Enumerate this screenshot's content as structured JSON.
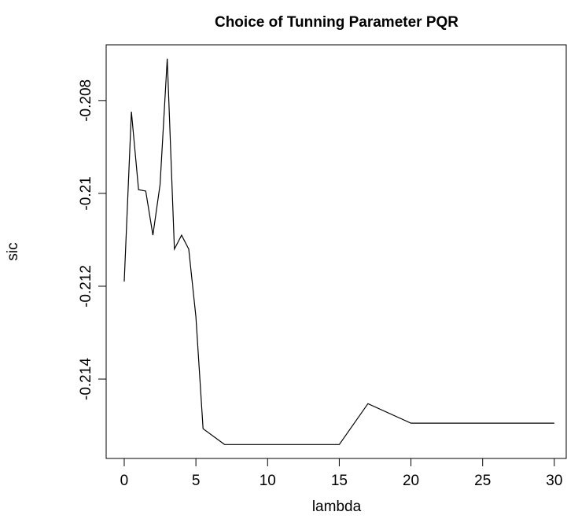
{
  "chart_data": {
    "type": "line",
    "title": "Choice of Tunning Parameter PQR",
    "x_label": "lambda",
    "y_label": "sic",
    "x": [
      0,
      0.5,
      1,
      1.5,
      2,
      2.5,
      3,
      3.5,
      4,
      4.5,
      5,
      5.5,
      7,
      15,
      17,
      20,
      30
    ],
    "series": [
      {
        "color": "#000000",
        "values": [
          -0.2119,
          -0.20824,
          -0.20992,
          -0.20995,
          -0.2109,
          -0.20981,
          -0.2071,
          -0.2112,
          -0.2109,
          -0.2112,
          -0.21266,
          -0.21507,
          -0.21541,
          -0.21541,
          -0.21453,
          -0.21495,
          -0.21495
        ]
      }
    ],
    "xlim": [
      -1.26,
      30.83
    ],
    "ylim": [
      -0.21571,
      -0.2068
    ],
    "xticks": [
      0,
      5,
      10,
      15,
      20,
      25,
      30
    ],
    "yticks": [
      -0.214,
      -0.212,
      -0.21,
      -0.208
    ]
  }
}
